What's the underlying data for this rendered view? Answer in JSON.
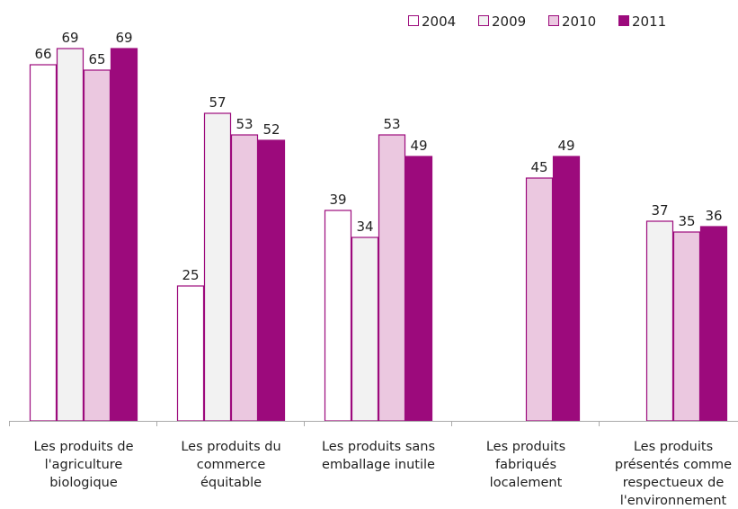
{
  "chart_data": {
    "type": "bar",
    "title": "",
    "xlabel": "",
    "ylabel": "",
    "ylim": [
      0,
      75
    ],
    "grid": false,
    "legend_position": "top-right",
    "categories": [
      [
        "Les produits de",
        "l'agriculture",
        "biologique"
      ],
      [
        "Les produits du",
        "commerce",
        "équitable"
      ],
      [
        "Les produits sans",
        "emballage inutile"
      ],
      [
        "Les produits",
        "fabriqués",
        "localement"
      ],
      [
        "Les produits",
        "présentés comme",
        "respectueux de",
        "l'environnement"
      ]
    ],
    "series": [
      {
        "name": "2004",
        "color": "#ffffff",
        "values": [
          66,
          25,
          39,
          null,
          null
        ]
      },
      {
        "name": "2009",
        "color": "#f2f2f2",
        "values": [
          69,
          57,
          34,
          null,
          37
        ]
      },
      {
        "name": "2010",
        "color": "#ebc8e0",
        "values": [
          65,
          53,
          53,
          45,
          35
        ]
      },
      {
        "name": "2011",
        "color": "#9c0a7c",
        "values": [
          69,
          52,
          49,
          49,
          36
        ]
      }
    ],
    "outline_color": "#9c0a7c"
  }
}
